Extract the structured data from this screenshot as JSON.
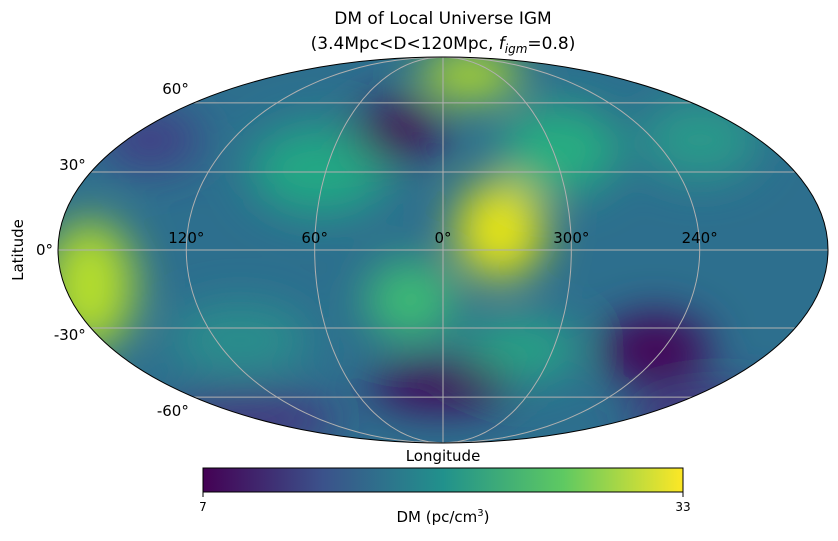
{
  "chart_data": {
    "type": "mollweide-map",
    "title": "DM of Local Universe IGM",
    "subtitle": {
      "before": "(3.4Mpc<D<120Mpc, ",
      "symbol": "f",
      "subscript": "igm",
      "after": "=0.8)"
    },
    "x_label": "Longitude",
    "y_label": "Latitude",
    "xticks": [
      {
        "value": 120,
        "label": "120°"
      },
      {
        "value": 60,
        "label": "60°"
      },
      {
        "value": 0,
        "label": "0°"
      },
      {
        "value": 300,
        "label": "300°"
      },
      {
        "value": 240,
        "label": "240°"
      }
    ],
    "yticks": [
      {
        "value": 60,
        "label": "60°"
      },
      {
        "value": 30,
        "label": "30°"
      },
      {
        "value": 0,
        "label": "0°"
      },
      {
        "value": -30,
        "label": "-30°"
      },
      {
        "value": -60,
        "label": "-60°"
      }
    ],
    "grid": true,
    "colorbar": {
      "colormap": "viridis",
      "lim": [
        7,
        33
      ],
      "ticks": [
        7,
        33
      ],
      "label": {
        "text": "DM (pc/cm",
        "superscript": "3",
        "after": ")"
      }
    }
  }
}
